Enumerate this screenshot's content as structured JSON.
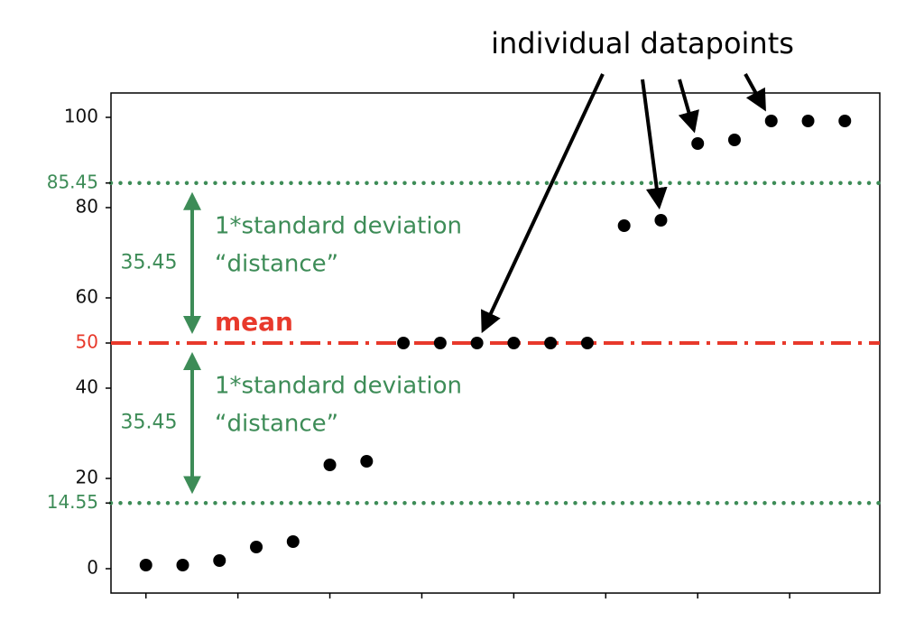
{
  "chart_data": {
    "type": "scatter",
    "callout": "individual datapoints",
    "x": [
      0,
      1,
      2,
      3,
      4,
      5,
      6,
      7,
      8,
      9,
      10,
      11,
      12,
      13,
      14,
      15,
      16,
      17,
      18,
      19
    ],
    "values": [
      0.8,
      0.8,
      1.8,
      4.8,
      6,
      23,
      23.8,
      50,
      50,
      50,
      50,
      50,
      50,
      76,
      77.2,
      94.2,
      95,
      99.2,
      99.2,
      99.2
    ],
    "color": "#000000",
    "xlim": [
      -0.95,
      19.95
    ],
    "xticks": [
      0,
      2.5,
      5,
      7.5,
      10,
      12.5,
      15,
      17.5
    ],
    "ylim": [
      -5.4,
      105.4
    ],
    "yticks": [
      0,
      20,
      40,
      60,
      80,
      100
    ],
    "reference_lines": [
      {
        "value": 50,
        "label": "mean",
        "color": "#e8392b",
        "style": "dashdot"
      },
      {
        "value": 85.45,
        "color": "#3d8c57",
        "style": "dotted"
      },
      {
        "value": 14.55,
        "color": "#3d8c57",
        "style": "dotted"
      }
    ],
    "std_labels": [
      {
        "lines": [
          "1*standard deviation",
          "“distance”"
        ],
        "distance": 35.45
      },
      {
        "lines": [
          "1*standard deviation",
          "“distance”"
        ],
        "distance": 35.45
      }
    ],
    "callout_points": [
      9,
      14,
      15,
      17
    ]
  }
}
